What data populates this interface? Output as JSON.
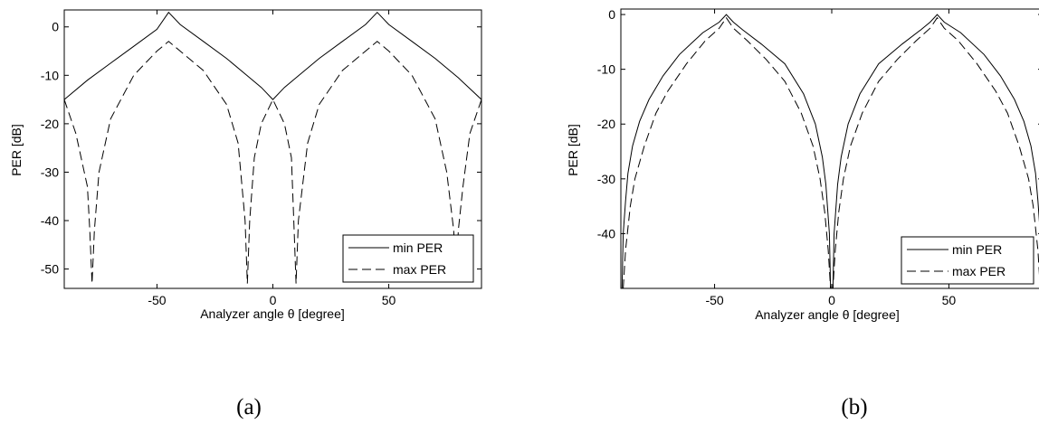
{
  "chart_data": [
    {
      "type": "line",
      "caption": "(a)",
      "xlabel": "Analyzer angle θ [degree]",
      "ylabel": "PER [dB]",
      "xlim": [
        -90,
        90
      ],
      "ylim": [
        -54,
        3.5
      ],
      "xticks": [
        -50,
        0,
        50
      ],
      "xtick_labels": [
        "-50",
        "0",
        "50"
      ],
      "yticks": [
        0,
        -10,
        -20,
        -30,
        -40,
        -50
      ],
      "ytick_labels": [
        "0",
        "-10",
        "-20",
        "-30",
        "-40",
        "-50"
      ],
      "grid": false,
      "legend_position": "bottom-right",
      "series": [
        {
          "name": "min PER",
          "style": "solid",
          "x": [
            -90,
            -80,
            -70,
            -60,
            -50,
            -45,
            -40,
            -30,
            -20,
            -10,
            -5,
            0,
            5,
            10,
            20,
            30,
            40,
            45,
            50,
            60,
            70,
            80,
            90
          ],
          "y": [
            -15,
            -11,
            -7.5,
            -4,
            -0.5,
            3,
            0.5,
            -3,
            -6.5,
            -10.5,
            -12.5,
            -15,
            -12.5,
            -10.5,
            -6.5,
            -3,
            0.5,
            3,
            0.5,
            -3,
            -6.5,
            -10.5,
            -15
          ]
        },
        {
          "name": "max PER",
          "style": "dashed",
          "x": [
            -90,
            -85,
            -80,
            -79,
            -78,
            -77,
            -75,
            -70,
            -60,
            -50,
            -45,
            -40,
            -30,
            -20,
            -15,
            -12,
            -11,
            -10,
            -8,
            -5,
            0,
            5,
            8,
            9,
            10,
            11,
            15,
            20,
            30,
            40,
            45,
            50,
            60,
            70,
            75,
            78,
            79,
            80,
            82,
            85,
            90
          ],
          "y": [
            -15,
            -22,
            -33,
            -42,
            -53,
            -42,
            -30,
            -19,
            -10,
            -5,
            -3,
            -5,
            -9,
            -16,
            -24,
            -40,
            -53,
            -40,
            -27,
            -20,
            -15,
            -20,
            -27,
            -40,
            -53,
            -40,
            -24,
            -16,
            -9,
            -5,
            -3,
            -5,
            -10,
            -19,
            -30,
            -42,
            -53,
            -42,
            -33,
            -22,
            -15
          ]
        }
      ]
    },
    {
      "type": "line",
      "caption": "(b)",
      "xlabel": "Analyzer angle θ [degree]",
      "ylabel": "PER [dB]",
      "xlim": [
        -90,
        90
      ],
      "ylim": [
        -50,
        1
      ],
      "xticks": [
        -50,
        0,
        50
      ],
      "xtick_labels": [
        "-50",
        "0",
        "50"
      ],
      "yticks": [
        0,
        -10,
        -20,
        -30,
        -40
      ],
      "ytick_labels": [
        "0",
        "-10",
        "-20",
        "-30",
        "-40"
      ],
      "grid": false,
      "legend_position": "bottom-right",
      "series": [
        {
          "name": "min PER",
          "style": "solid",
          "x": [
            -89.5,
            -89,
            -88,
            -87,
            -85,
            -82,
            -78,
            -72,
            -65,
            -55,
            -48,
            -45,
            -42,
            -38,
            -30,
            -20,
            -12,
            -7,
            -4,
            -2.5,
            -1,
            -0.5,
            0.5,
            1,
            2.5,
            4,
            7,
            12,
            20,
            30,
            38,
            42,
            45,
            48,
            55,
            65,
            72,
            78,
            82,
            85,
            87,
            88,
            89,
            89.5
          ],
          "y": [
            -50,
            -40,
            -34,
            -29,
            -24,
            -19.5,
            -15.5,
            -11.2,
            -7.3,
            -3.3,
            -1.4,
            0,
            -1.4,
            -2.8,
            -5.4,
            -9,
            -14.5,
            -20,
            -26,
            -31,
            -40,
            -50,
            -50,
            -40,
            -31,
            -26,
            -20,
            -14.5,
            -9,
            -5.4,
            -2.8,
            -1.4,
            0,
            -1.4,
            -3.3,
            -7.3,
            -11.2,
            -15.5,
            -19.5,
            -24,
            -29,
            -34,
            -40,
            -50
          ]
        },
        {
          "name": "max PER",
          "style": "dashed",
          "x": [
            -89,
            -88,
            -86,
            -84,
            -80,
            -75,
            -70,
            -62,
            -54,
            -48,
            -45,
            -42,
            -36,
            -28,
            -20,
            -13,
            -8,
            -5,
            -3,
            -1.5,
            -0.5,
            0.5,
            1.5,
            3,
            5,
            8,
            13,
            20,
            28,
            36,
            42,
            45,
            48,
            54,
            62,
            70,
            75,
            80,
            84,
            86,
            88,
            89
          ],
          "y": [
            -50,
            -43,
            -35,
            -30,
            -24,
            -18,
            -14,
            -9,
            -4.8,
            -2.5,
            -0.6,
            -2.5,
            -4.8,
            -8.2,
            -12.2,
            -18,
            -24,
            -30,
            -36,
            -43,
            -50,
            -50,
            -43,
            -36,
            -30,
            -24,
            -18,
            -12.2,
            -8.2,
            -4.8,
            -2.5,
            -0.6,
            -2.5,
            -4.8,
            -9,
            -14,
            -18,
            -24,
            -30,
            -35,
            -43,
            -50
          ]
        }
      ]
    }
  ]
}
